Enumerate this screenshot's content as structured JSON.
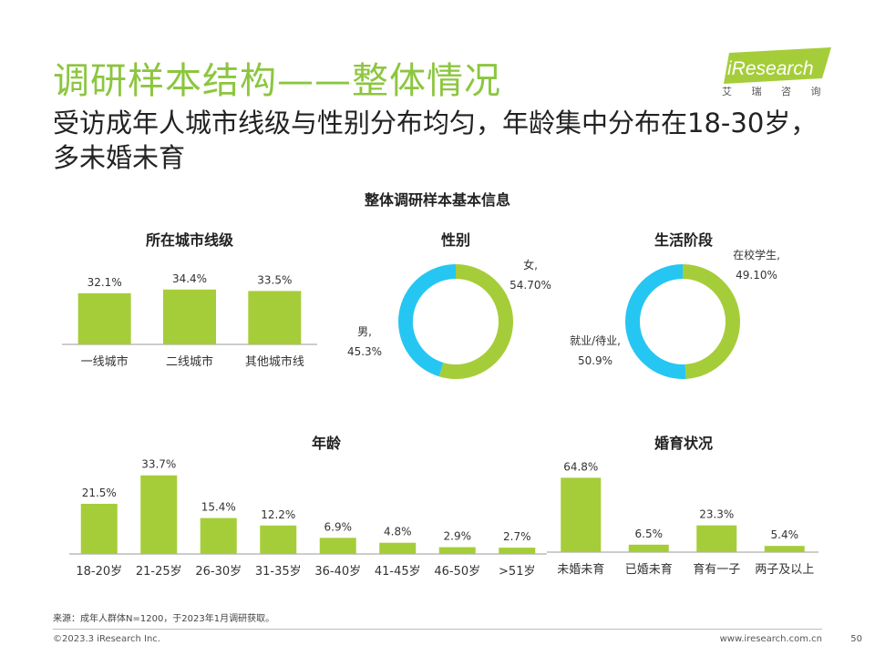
{
  "header": {
    "title": "调研样本结构——整体情况",
    "subtitle": "受访成年人城市线级与性别分布均匀，年龄集中分布在18-30岁，多未婚未育",
    "logo_text": "iResearch",
    "logo_tagline": "艾 瑞 咨 询"
  },
  "main_title": "整体调研样本基本信息",
  "colors": {
    "green": "#a5cd39",
    "blue": "#26c6f2",
    "title_green": "#8cc63e"
  },
  "chart_data": [
    {
      "id": "city",
      "type": "bar",
      "title": "所在城市线级",
      "categories": [
        "一线城市",
        "二线城市",
        "其他城市线"
      ],
      "values": [
        32.1,
        34.4,
        33.5
      ],
      "labels": [
        "32.1%",
        "34.4%",
        "33.5%"
      ]
    },
    {
      "id": "gender",
      "type": "pie",
      "title": "性别",
      "slices": [
        {
          "name": "女,",
          "value": 54.7,
          "label": "54.70%"
        },
        {
          "name": "男,",
          "value": 45.3,
          "label": "45.3%"
        }
      ]
    },
    {
      "id": "life",
      "type": "pie",
      "title": "生活阶段",
      "slices": [
        {
          "name": "在校学生,",
          "value": 49.1,
          "label": "49.10%"
        },
        {
          "name": "就业/待业,",
          "value": 50.9,
          "label": "50.9%"
        }
      ]
    },
    {
      "id": "age",
      "type": "bar",
      "title": "年龄",
      "categories": [
        "18-20岁",
        "21-25岁",
        "26-30岁",
        "31-35岁",
        "36-40岁",
        "41-45岁",
        "46-50岁",
        ">51岁"
      ],
      "values": [
        21.5,
        33.7,
        15.4,
        12.2,
        6.9,
        4.8,
        2.9,
        2.7
      ],
      "labels": [
        "21.5%",
        "33.7%",
        "15.4%",
        "12.2%",
        "6.9%",
        "4.8%",
        "2.9%",
        "2.7%"
      ]
    },
    {
      "id": "marital",
      "type": "bar",
      "title": "婚育状况",
      "categories": [
        "未婚未育",
        "已婚未育",
        "育有一子",
        "两子及以上"
      ],
      "values": [
        64.8,
        6.5,
        23.3,
        5.4
      ],
      "labels": [
        "64.8%",
        "6.5%",
        "23.3%",
        "5.4%"
      ]
    }
  ],
  "footer": {
    "note": "来源：成年人群体N=1200，于2023年1月调研获取。",
    "copyright": "©2023.3 iResearch Inc.",
    "website": "www.iresearch.com.cn",
    "page_number": "50"
  }
}
